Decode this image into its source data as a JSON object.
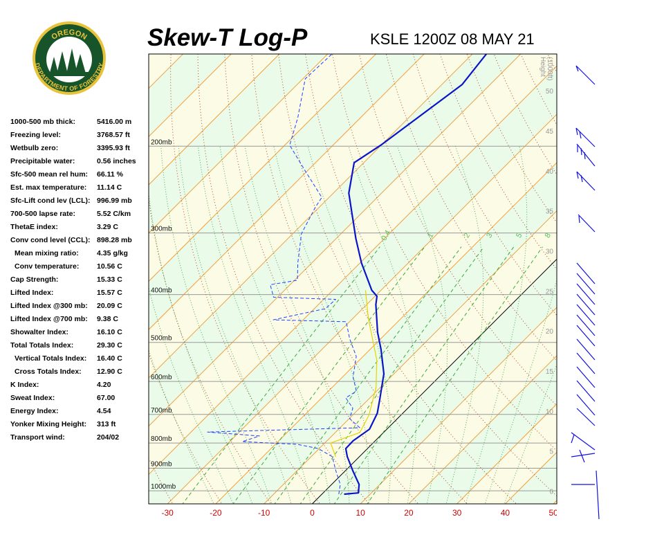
{
  "logo": {
    "top": "OREGON",
    "bottom": "DEPARTMENT OF FORESTRY"
  },
  "stats": [
    {
      "label": "1000-500 mb thick:",
      "value": "5416.00 m"
    },
    {
      "label": "Freezing level:",
      "value": "3768.57 ft"
    },
    {
      "label": "Wetbulb zero:",
      "value": "3395.93 ft"
    },
    {
      "label": "Precipitable water:",
      "value": "0.56 inches"
    },
    {
      "label": "Sfc-500 mean rel hum:",
      "value": "66.11 %"
    },
    {
      "label": "Est. max temperature:",
      "value": "11.14 C"
    },
    {
      "label": "Sfc-Lift cond lev (LCL):",
      "value": "996.99 mb"
    },
    {
      "label": "700-500 lapse rate:",
      "value": "5.52 C/km"
    },
    {
      "label": "ThetaE index:",
      "value": "3.29 C"
    },
    {
      "label": "Conv cond level (CCL):",
      "value": "898.28 mb"
    },
    {
      "label": "Mean mixing ratio:",
      "value": "4.35 g/kg"
    },
    {
      "label": "Conv temperature:",
      "value": "10.56 C"
    },
    {
      "label": "Cap Strength:",
      "value": "15.33 C"
    },
    {
      "label": "Lifted Index:",
      "value": "15.57 C"
    },
    {
      "label": "Lifted Index @300 mb:",
      "value": "20.09 C"
    },
    {
      "label": "Lifted Index @700 mb:",
      "value": "9.38 C"
    },
    {
      "label": "Showalter Index:",
      "value": "16.10 C"
    },
    {
      "label": "Total Totals Index:",
      "value": "29.30 C"
    },
    {
      "label": "Vertical Totals Index:",
      "value": "16.40 C"
    },
    {
      "label": "Cross Totals Index:",
      "value": "12.90 C"
    },
    {
      "label": "K Index:",
      "value": "4.20"
    },
    {
      "label": "Sweat Index:",
      "value": "67.00"
    },
    {
      "label": "Energy Index:",
      "value": "4.54"
    },
    {
      "label": "Yonker Mixing Height:",
      "value": "313 ft"
    },
    {
      "label": "Transport wind:",
      "value": "204/02"
    }
  ],
  "chart_data": {
    "type": "skew-t",
    "title": "Skew-T Log-P",
    "subtitle": "KSLE 1200Z 08 MAY 21",
    "xlim": [
      -33.9,
      50.7
    ],
    "xticks": [
      -30,
      -20,
      -10,
      0,
      10,
      20,
      30,
      40,
      50
    ],
    "ylim": [
      1063,
      130
    ],
    "log_y": true,
    "yticks": [
      {
        "value": 1000,
        "label": "1000mb"
      },
      {
        "value": 900,
        "label": "900mb"
      },
      {
        "value": 800,
        "label": "800mb"
      },
      {
        "value": 700,
        "label": "700mb"
      },
      {
        "value": 600,
        "label": "600mb"
      },
      {
        "value": 500,
        "label": "500mb"
      },
      {
        "value": 400,
        "label": "400mb"
      },
      {
        "value": 300,
        "label": "300mb"
      },
      {
        "value": 200,
        "label": "200mb"
      }
    ],
    "y2label": [
      "Height",
      "(1000ft)"
    ],
    "y2lim": [
      -1.6,
      54.6
    ],
    "y2ticks": [
      0,
      5,
      10,
      15,
      20,
      25,
      30,
      35,
      40,
      45,
      50
    ],
    "mixing_ratio_lines": [
      0.4,
      1,
      2,
      3,
      5,
      8
    ],
    "isotherm_color": "#f0a040",
    "dry_adiabat_color": "#b04a20",
    "moist_adiabat_color": "#2a9a2a",
    "series": [
      {
        "color": "#0a14c8",
        "style": "solid",
        "pressure": [
          1016,
          1010,
          971,
          910,
          853,
          821,
          792,
          750,
          696,
          648,
          579,
          517,
          477,
          419,
          403,
          392,
          345,
          308,
          249,
          216,
          199,
          150,
          130
        ],
        "values": [
          4.6,
          7.3,
          5.7,
          1.5,
          -2.5,
          -4.5,
          -4.6,
          -3.6,
          -5.3,
          -7.9,
          -12.1,
          -17.7,
          -22.0,
          -28.1,
          -29.6,
          -31.9,
          -39.7,
          -45.9,
          -56.8,
          -62.0,
          -60.1,
          -55.8,
          -57.1
        ]
      },
      {
        "color": "#1f3fff",
        "style": "dashed",
        "pressure": [
          1016,
          971,
          910,
          853,
          821,
          805,
          795,
          774,
          760,
          745,
          714,
          680,
          648,
          628,
          588,
          534,
          492,
          454,
          450,
          427,
          409,
          405,
          382,
          374,
          345,
          301,
          266,
          254,
          223,
          199,
          175,
          146,
          130
        ],
        "values": [
          3.5,
          1.8,
          -2.0,
          -5.6,
          -10.2,
          -15.4,
          -27.4,
          -25.0,
          -36.6,
          -5.9,
          -9.9,
          -11.4,
          -15.0,
          -14.2,
          -17.8,
          -21.4,
          -26.4,
          -30.7,
          -46.2,
          -37.7,
          -37.5,
          -50.8,
          -54.1,
          -49.4,
          -52.9,
          -58.2,
          -60.8,
          -61.5,
          -70.9,
          -79.0,
          -83.0,
          -89.5,
          -89.1
        ]
      },
      {
        "color": "#e6d400",
        "style": "solid",
        "pressure": [
          853,
          800,
          762,
          703,
          617,
          543,
          447,
          392
        ],
        "values": [
          -4.9,
          -8.8,
          -4.9,
          -6.6,
          -10.9,
          -16.4,
          -26.8,
          -33.2
        ]
      }
    ]
  }
}
